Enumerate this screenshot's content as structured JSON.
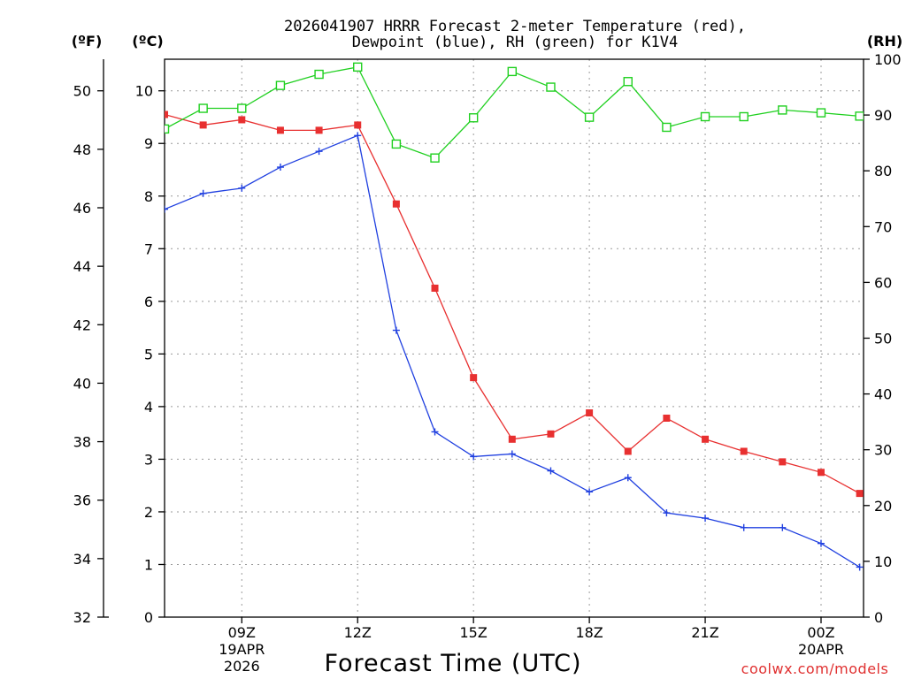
{
  "chart_data": {
    "type": "line",
    "title_line1": "2026041907 HRRR Forecast 2-meter Temperature (red),",
    "title_line2": "Dewpoint (blue), RH (green) for K1V4",
    "xlabel": "Forecast Time (UTC)",
    "credit": "coolwx.com/models",
    "units": {
      "fahrenheit": "(ºF)",
      "celsius": "(ºC)",
      "rh": "(RH)"
    },
    "x_hours": [
      7,
      8,
      9,
      10,
      11,
      12,
      13,
      14,
      15,
      16,
      17,
      18,
      19,
      20,
      21,
      22,
      23,
      24,
      25
    ],
    "xlim": [
      7,
      25.1
    ],
    "x_ticks": [
      {
        "hour": 9,
        "line1": "09Z",
        "line2": "19APR",
        "line3": "2026"
      },
      {
        "hour": 12,
        "line1": "12Z"
      },
      {
        "hour": 15,
        "line1": "15Z"
      },
      {
        "hour": 18,
        "line1": "18Z"
      },
      {
        "hour": 21,
        "line1": "21Z"
      },
      {
        "hour": 24,
        "line1": "00Z",
        "line2": "20APR"
      }
    ],
    "celsius_axis": {
      "ylim": [
        0,
        10.6
      ],
      "ticks": [
        "0",
        "1",
        "2",
        "3",
        "4",
        "5",
        "6",
        "7",
        "8",
        "9",
        "10"
      ]
    },
    "fahrenheit_axis": {
      "ylim": [
        32,
        51.08
      ],
      "ticks": [
        "32",
        "34",
        "36",
        "38",
        "40",
        "42",
        "44",
        "46",
        "48",
        "50"
      ]
    },
    "rh_axis": {
      "ylim": [
        0,
        100
      ],
      "ticks": [
        "0",
        "10",
        "20",
        "30",
        "40",
        "50",
        "60",
        "70",
        "80",
        "90",
        "100"
      ]
    },
    "series": [
      {
        "name": "2-meter Temperature",
        "axis": "celsius",
        "color": "#e83030",
        "marker": "filled-square",
        "values": [
          9.55,
          9.35,
          9.45,
          9.25,
          9.25,
          9.35,
          7.85,
          6.25,
          4.55,
          3.38,
          3.48,
          3.88,
          3.15,
          3.78,
          3.38,
          3.15,
          2.95,
          2.75,
          2.35
        ]
      },
      {
        "name": "Dewpoint",
        "axis": "celsius",
        "color": "#2040e0",
        "marker": "plus",
        "values": [
          7.75,
          8.05,
          8.15,
          8.55,
          8.85,
          9.15,
          5.45,
          3.52,
          3.05,
          3.1,
          2.78,
          2.38,
          2.65,
          1.98,
          1.88,
          1.7,
          1.7,
          1.4,
          0.95
        ]
      },
      {
        "name": "RH",
        "axis": "rh",
        "color": "#20d020",
        "marker": "open-square",
        "values": [
          87.5,
          91.2,
          91.2,
          95.3,
          97.3,
          98.6,
          84.8,
          82.3,
          89.5,
          97.8,
          95.0,
          89.6,
          96.0,
          87.8,
          89.7,
          89.7,
          90.9,
          90.4,
          89.8
        ]
      }
    ]
  }
}
